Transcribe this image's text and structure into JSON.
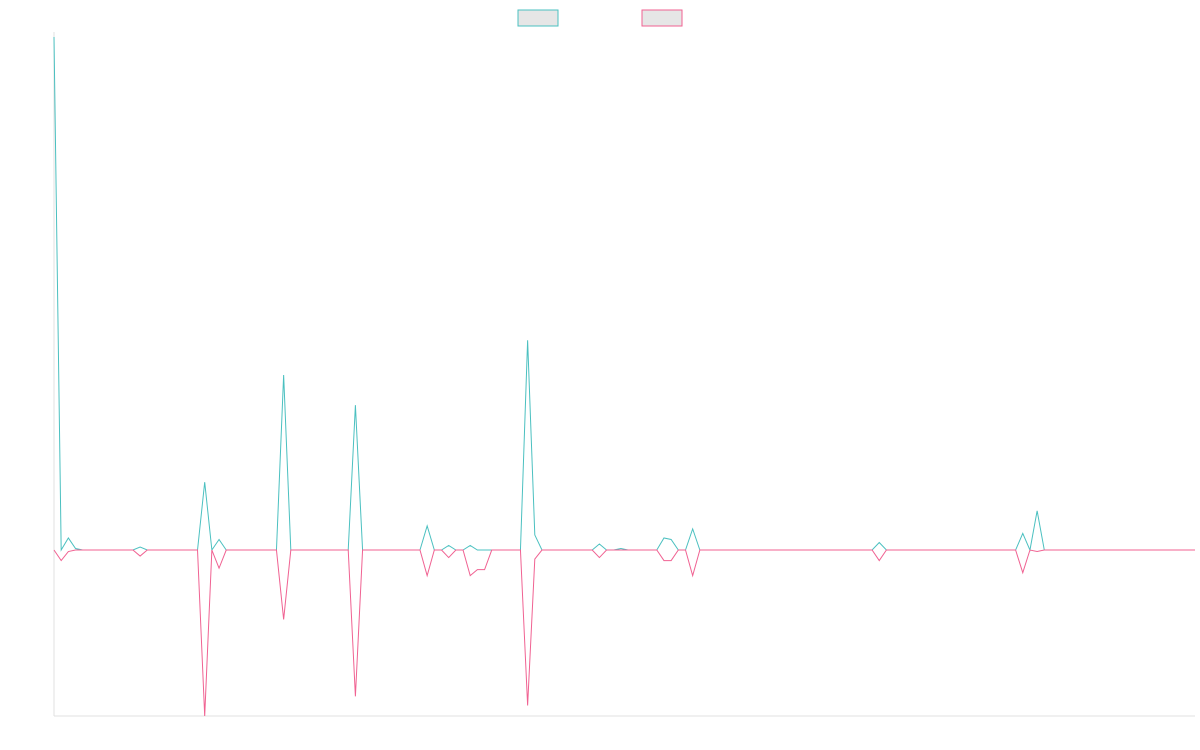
{
  "chart_data": {
    "type": "line",
    "title": "",
    "xlabel": "",
    "ylabel": "",
    "grid": false,
    "legend_position": "top-center",
    "x_count": 160,
    "ylim": [
      -1.1,
      3.4
    ],
    "series": [
      {
        "name": "",
        "stroke_color": "#4bc0c0",
        "fill_color": "#e6e6e6",
        "values": [
          3.4,
          0.0,
          0.08,
          0.01,
          0.0,
          0.0,
          0.0,
          0.0,
          0.0,
          0.0,
          0.0,
          0.0,
          0.02,
          0.0,
          0.0,
          0.0,
          0.0,
          0.0,
          0.0,
          0.0,
          0.0,
          0.45,
          0.0,
          0.07,
          0.0,
          0.0,
          0.0,
          0.0,
          0.0,
          0.0,
          0.0,
          0.0,
          1.16,
          0.0,
          0.0,
          0.0,
          0.0,
          0.0,
          0.0,
          0.0,
          0.0,
          0.0,
          0.96,
          0.0,
          0.0,
          0.0,
          0.0,
          0.0,
          0.0,
          0.0,
          0.0,
          0.0,
          0.16,
          0.0,
          0.0,
          0.03,
          0.0,
          0.0,
          0.03,
          0.0,
          0.0,
          0.0,
          0.0,
          0.0,
          0.0,
          0.0,
          1.39,
          0.1,
          0.0,
          0.0,
          0.0,
          0.0,
          0.0,
          0.0,
          0.0,
          0.0,
          0.04,
          0.0,
          0.0,
          0.01,
          0.0,
          0.0,
          0.0,
          0.0,
          0.0,
          0.08,
          0.07,
          0.0,
          0.0,
          0.14,
          0.0,
          0.0,
          0.0,
          0.0,
          0.0,
          0.0,
          0.0,
          0.0,
          0.0,
          0.0,
          0.0,
          0.0,
          0.0,
          0.0,
          0.0,
          0.0,
          0.0,
          0.0,
          0.0,
          0.0,
          0.0,
          0.0,
          0.0,
          0.0,
          0.0,
          0.05,
          0.0,
          0.0,
          0.0,
          0.0,
          0.0,
          0.0,
          0.0,
          0.0,
          0.0,
          0.0,
          0.0,
          0.0,
          0.0,
          0.0,
          0.0,
          0.0,
          0.0,
          0.0,
          0.0,
          0.11,
          0.0,
          0.26,
          0.0,
          0.0,
          0.0,
          0.0,
          0.0,
          0.0,
          0.0,
          0.0,
          0.0,
          0.0,
          0.0,
          0.0,
          0.0,
          0.0,
          0.0,
          0.0,
          0.0,
          0.0,
          0.0,
          0.0,
          0.0,
          0.0
        ]
      },
      {
        "name": "",
        "stroke_color": "#f06292",
        "fill_color": "#e6e6e6",
        "values": [
          0.0,
          -0.07,
          -0.01,
          0.0,
          0.0,
          0.0,
          0.0,
          0.0,
          0.0,
          0.0,
          0.0,
          0.0,
          -0.04,
          0.0,
          0.0,
          0.0,
          0.0,
          0.0,
          0.0,
          0.0,
          0.0,
          -1.1,
          0.0,
          -0.12,
          0.0,
          0.0,
          0.0,
          0.0,
          0.0,
          0.0,
          0.0,
          0.0,
          -0.46,
          0.0,
          0.0,
          0.0,
          0.0,
          0.0,
          0.0,
          0.0,
          0.0,
          0.0,
          -0.97,
          0.0,
          0.0,
          0.0,
          0.0,
          0.0,
          0.0,
          0.0,
          0.0,
          0.0,
          -0.17,
          0.0,
          0.0,
          -0.05,
          0.0,
          0.0,
          -0.17,
          -0.13,
          -0.13,
          0.0,
          0.0,
          0.0,
          0.0,
          0.0,
          -1.03,
          -0.06,
          0.0,
          0.0,
          0.0,
          0.0,
          0.0,
          0.0,
          0.0,
          0.0,
          -0.05,
          0.0,
          0.0,
          0.0,
          0.0,
          0.0,
          0.0,
          0.0,
          0.0,
          -0.07,
          -0.07,
          0.0,
          0.0,
          -0.17,
          0.0,
          0.0,
          0.0,
          0.0,
          0.0,
          0.0,
          0.0,
          0.0,
          0.0,
          0.0,
          0.0,
          0.0,
          0.0,
          0.0,
          0.0,
          0.0,
          0.0,
          0.0,
          0.0,
          0.0,
          0.0,
          0.0,
          0.0,
          0.0,
          0.0,
          -0.07,
          0.0,
          0.0,
          0.0,
          0.0,
          0.0,
          0.0,
          0.0,
          0.0,
          0.0,
          0.0,
          0.0,
          0.0,
          0.0,
          0.0,
          0.0,
          0.0,
          0.0,
          0.0,
          0.0,
          -0.15,
          0.0,
          -0.01,
          0.0,
          0.0,
          0.0,
          0.0,
          0.0,
          0.0,
          0.0,
          0.0,
          0.0,
          0.0,
          0.0,
          0.0,
          0.0,
          0.0,
          0.0,
          0.0,
          0.0,
          0.0,
          0.0,
          0.0,
          0.0,
          0.0
        ]
      }
    ]
  }
}
